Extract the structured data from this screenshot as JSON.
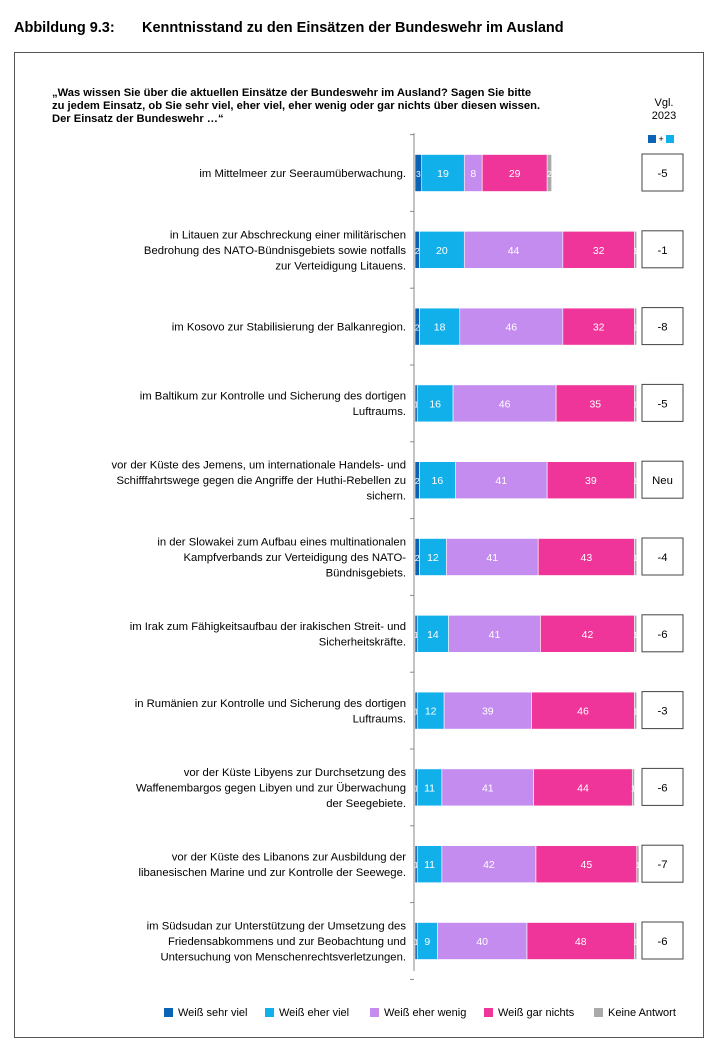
{
  "figure": {
    "label": "Abbildung 9.3:",
    "title": "Kenntnisstand zu den Einsätzen der Bundeswehr im Ausland"
  },
  "question": {
    "line1": "„Was wissen Sie über die aktuellen Einsätze der Bundeswehr im Ausland? Sagen Sie bitte",
    "line2": "zu jedem Einsatz, ob Sie sehr viel, eher viel, eher wenig oder gar nichts über diesen wissen.",
    "line3": "Der Einsatz der Bundeswehr …“"
  },
  "comparison": {
    "label_line1": "Vgl.",
    "label_line2": "2023",
    "marker_plus": "+"
  },
  "colors": {
    "sehr_viel": "#0a63b5",
    "eher_viel": "#12b0ea",
    "eher_wenig": "#c58cf0",
    "gar_nichts": "#f0359a",
    "keine_antwort": "#aaaaaa"
  },
  "chart_data": {
    "type": "bar",
    "orientation": "horizontal",
    "stacked": true,
    "unit": "Prozent",
    "xlim": [
      0,
      100
    ],
    "series": [
      {
        "name": "Weiß sehr viel",
        "key": "sehr_viel"
      },
      {
        "name": "Weiß eher viel",
        "key": "eher_viel"
      },
      {
        "name": "Weiß eher wenig",
        "key": "eher_wenig"
      },
      {
        "name": "Weiß gar nichts",
        "key": "gar_nichts"
      },
      {
        "name": "Keine Antwort",
        "key": "keine_antwort"
      }
    ],
    "categories": [
      {
        "label": [
          "im Mittelmeer zur Seeraumüberwachung."
        ],
        "values": [
          3,
          19,
          8,
          29,
          2
        ],
        "delta": "-5"
      },
      {
        "label": [
          "in Litauen zur Abschreckung einer militärischen",
          "Bedrohung des NATO-Bündnisgebiets sowie notfalls",
          "zur Verteidigung Litauens."
        ],
        "values": [
          2,
          20,
          44,
          32,
          1
        ],
        "delta": "-1"
      },
      {
        "label": [
          "im Kosovo zur Stabilisierung der Balkanregion."
        ],
        "values": [
          2,
          18,
          46,
          32,
          1
        ],
        "delta": "-8"
      },
      {
        "label": [
          "im Baltikum zur Kontrolle und Sicherung des dortigen",
          "Luftraums."
        ],
        "values": [
          1,
          16,
          46,
          35,
          1
        ],
        "delta": "-5"
      },
      {
        "label": [
          "vor der Küste des Jemens, um internationale Handels- und",
          "Schifffahrtswege gegen die Angriffe der Huthi-Rebellen zu",
          "sichern."
        ],
        "values": [
          2,
          16,
          41,
          39,
          1
        ],
        "delta": "Neu"
      },
      {
        "label": [
          "in der Slowakei zum Aufbau eines multinationalen",
          "Kampfverbands zur Verteidigung des NATO-",
          "Bündnisgebiets."
        ],
        "values": [
          2,
          12,
          41,
          43,
          1
        ],
        "delta": "-4"
      },
      {
        "label": [
          "im Irak zum Fähigkeitsaufbau der irakischen Streit- und",
          "Sicherheitskräfte."
        ],
        "values": [
          1,
          14,
          41,
          42,
          1
        ],
        "delta": "-6"
      },
      {
        "label": [
          "in Rumänien zur Kontrolle und Sicherung des dortigen",
          "Luftraums."
        ],
        "values": [
          1,
          12,
          39,
          46,
          1
        ],
        "delta": "-3"
      },
      {
        "label": [
          "vor der Küste Libyens zur Durchsetzung des",
          "Waffenembargos gegen Libyen und zur Überwachung",
          "der Seegebiete."
        ],
        "values": [
          1,
          11,
          41,
          44,
          1
        ],
        "delta": "-6"
      },
      {
        "label": [
          "vor der Küste des Libanons zur Ausbildung der",
          "libanesischen Marine und zur Kontrolle der Seewege."
        ],
        "values": [
          1,
          11,
          42,
          45,
          1
        ],
        "delta": "-7"
      },
      {
        "label": [
          "im Südsudan zur Unterstützung der Umsetzung des",
          "Friedensabkommens und zur Beobachtung und",
          "Untersuchung von Menschenrechtsverletzungen."
        ],
        "values": [
          1,
          9,
          40,
          48,
          1
        ],
        "delta": "-6"
      }
    ]
  }
}
